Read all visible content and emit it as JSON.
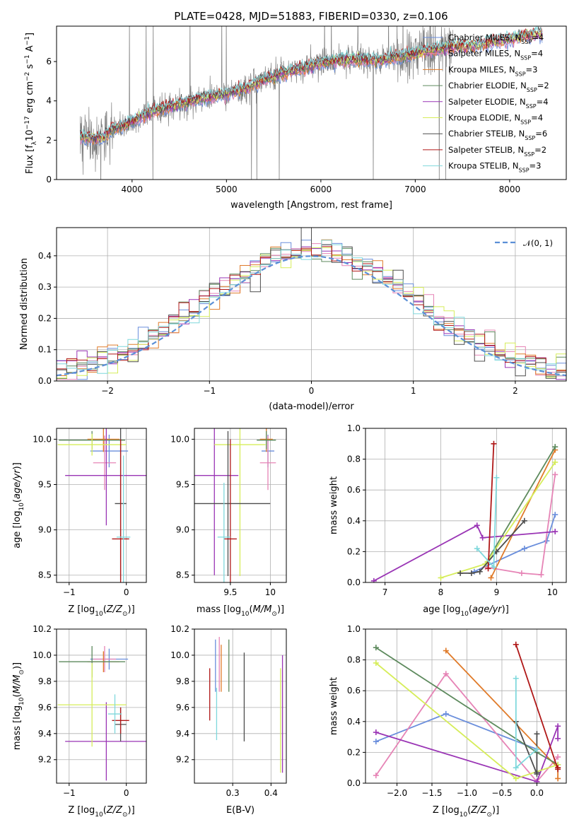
{
  "colors": {
    "Chabrier MILES": "#6a8edc",
    "Salpeter MILES": "#e684b6",
    "Kroupa MILES": "#e07b2a",
    "Chabrier ELODIE": "#5d8a5d",
    "Salpeter ELODIE": "#9a35b5",
    "Kroupa ELODIE": "#d6ed5a",
    "Chabrier STELIB": "#4d4d4d",
    "Salpeter STELIB": "#b01818",
    "Kroupa STELIB": "#7fd8dc",
    "data": "#808080",
    "gauss": "#5b8fd6"
  },
  "chart_data": [
    {
      "id": "spectrum",
      "type": "line",
      "title": "PLATE=0428, MJD=51883, FIBERID=0330, z=0.106",
      "xlabel": "wavelength [Angstrom, rest frame]",
      "ylabel": "Flux [f",
      "ylabel_parts": [
        "Flux [f",
        "λ",
        "10",
        "−17",
        " erg cm",
        "−2",
        " s",
        "−1",
        " A",
        "−1",
        "]"
      ],
      "xlim": [
        3200,
        8600
      ],
      "ylim": [
        0,
        7.8
      ],
      "xticks": [
        4000,
        5000,
        6000,
        7000,
        8000
      ],
      "yticks": [
        0,
        2,
        4,
        6
      ],
      "grid": false,
      "legend_position": "top-right",
      "legend": [
        {
          "name": "Chabrier MILES",
          "nssp": "4"
        },
        {
          "name": "Salpeter MILES",
          "nssp": "4"
        },
        {
          "name": "Kroupa MILES",
          "nssp": "3"
        },
        {
          "name": "Chabrier ELODIE",
          "nssp": "2"
        },
        {
          "name": "Salpeter ELODIE",
          "nssp": "4"
        },
        {
          "name": "Kroupa ELODIE",
          "nssp": "4"
        },
        {
          "name": "Chabrier STELIB",
          "nssp": "6"
        },
        {
          "name": "Salpeter STELIB",
          "nssp": "2"
        },
        {
          "name": "Kroupa STELIB",
          "nssp": "3"
        }
      ],
      "continuum": {
        "x": [
          3450,
          3600,
          3700,
          3800,
          3900,
          4000,
          4100,
          4200,
          4400,
          4600,
          4800,
          5000,
          5200,
          5400,
          5600,
          5800,
          6000,
          6200,
          6400,
          6600,
          6800,
          7000,
          7200,
          7400,
          7600,
          7800,
          8000,
          8200,
          8350
        ],
        "y": [
          2.2,
          2.05,
          2.15,
          2.6,
          2.7,
          2.95,
          3.2,
          3.45,
          3.7,
          3.95,
          4.2,
          4.35,
          4.65,
          5.05,
          5.4,
          5.65,
          5.95,
          6.05,
          6.1,
          6.05,
          6.2,
          6.4,
          6.6,
          6.75,
          6.8,
          6.95,
          7.15,
          7.35,
          7.4
        ]
      },
      "data_x_range": [
        3450,
        7400
      ],
      "data_noise": 0.45
    },
    {
      "id": "residuals",
      "type": "step",
      "xlabel": "(data-model)/error",
      "ylabel": "Normed distribution",
      "xlim": [
        -2.5,
        2.5
      ],
      "ylim": [
        0,
        0.49
      ],
      "xticks": [
        -2,
        -1,
        0,
        1,
        2
      ],
      "yticks": [
        0.0,
        0.1,
        0.2,
        0.3,
        0.4
      ],
      "grid": true,
      "legend_position": "top-right",
      "gauss_label": "𝒩(0, 1)",
      "bin_width": 0.1
    },
    {
      "id": "age-vs-Z",
      "type": "errorbar",
      "xlabel": "Z [log10(Z/Z⊙)]",
      "ylabel": "age  [log10(age/yr)]",
      "xlim": [
        -1.22,
        0.35
      ],
      "ylim": [
        8.42,
        10.12
      ],
      "xticks": [
        -1,
        0
      ],
      "yticks": [
        8.5,
        9.0,
        9.5,
        10.0
      ],
      "grid": true,
      "points": [
        {
          "model": "Chabrier MILES",
          "x": -0.3,
          "xerr": 0.33,
          "y": 9.87,
          "yerr": 0.18
        },
        {
          "model": "Salpeter MILES",
          "x": -0.38,
          "xerr": 0.2,
          "y": 9.74,
          "yerr": 0.3
        },
        {
          "model": "Kroupa MILES",
          "x": -0.4,
          "xerr": 0.28,
          "y": 10.0,
          "yerr": 0.14
        },
        {
          "model": "Chabrier ELODIE",
          "x": -0.6,
          "xerr": 0.58,
          "y": 9.99,
          "yerr": 0.1
        },
        {
          "model": "Salpeter ELODIE",
          "x": -0.35,
          "xerr": 0.72,
          "y": 9.6,
          "yerr": 0.55
        },
        {
          "model": "Kroupa ELODIE",
          "x": -0.6,
          "xerr": 0.6,
          "y": 9.94,
          "yerr": 0.12
        },
        {
          "model": "Chabrier STELIB",
          "x": -0.1,
          "xerr": 0.1,
          "y": 9.29,
          "yerr": 0.85
        },
        {
          "model": "Salpeter STELIB",
          "x": -0.1,
          "xerr": 0.15,
          "y": 8.9,
          "yerr": 1.1
        },
        {
          "model": "Kroupa STELIB",
          "x": -0.05,
          "xerr": 0.12,
          "y": 8.92,
          "yerr": 0.9
        }
      ]
    },
    {
      "id": "age-vs-mass",
      "type": "errorbar",
      "xlabel": "mass [log10(M/M⊙)]",
      "ylabel": "",
      "xlim": [
        9.05,
        10.2
      ],
      "ylim": [
        8.42,
        10.12
      ],
      "xticks": [
        9.5,
        10.0
      ],
      "yticks": [
        8.5,
        9.0,
        9.5,
        10.0
      ],
      "grid": true,
      "points": [
        {
          "model": "Chabrier MILES",
          "x": 9.97,
          "xerr": 0.08,
          "y": 9.87,
          "yerr": 0.18
        },
        {
          "model": "Salpeter MILES",
          "x": 9.97,
          "xerr": 0.1,
          "y": 9.74,
          "yerr": 0.3
        },
        {
          "model": "Kroupa MILES",
          "x": 9.95,
          "xerr": 0.08,
          "y": 10.0,
          "yerr": 0.14
        },
        {
          "model": "Chabrier ELODIE",
          "x": 9.95,
          "xerr": 0.12,
          "y": 9.99,
          "yerr": 0.1
        },
        {
          "model": "Salpeter ELODIE",
          "x": 9.3,
          "xerr": 0.3,
          "y": 9.6,
          "yerr": 1.1
        },
        {
          "model": "Kroupa ELODIE",
          "x": 9.62,
          "xerr": 0.32,
          "y": 9.94,
          "yerr": 1.45
        },
        {
          "model": "Chabrier STELIB",
          "x": 9.47,
          "xerr": 0.53,
          "y": 9.29,
          "yerr": 0.8
        },
        {
          "model": "Salpeter STELIB",
          "x": 9.5,
          "xerr": 0.08,
          "y": 8.9,
          "yerr": 1.1
        },
        {
          "model": "Kroupa STELIB",
          "x": 9.42,
          "xerr": 0.08,
          "y": 8.92,
          "yerr": 0.6
        }
      ]
    },
    {
      "id": "weight-vs-age",
      "type": "line",
      "xlabel": "age  [log10(age/yr)]",
      "ylabel": "mass weight",
      "xlim": [
        6.65,
        10.25
      ],
      "ylim": [
        0,
        1.0
      ],
      "xticks": [
        7,
        8,
        9,
        10
      ],
      "yticks": [
        0.0,
        0.2,
        0.4,
        0.6,
        0.8,
        1.0
      ],
      "grid": true,
      "series": [
        {
          "model": "Chabrier MILES",
          "x": [
            8.6,
            9.5,
            9.9,
            10.05
          ],
          "y": [
            0.07,
            0.22,
            0.27,
            0.44
          ]
        },
        {
          "model": "Salpeter MILES",
          "x": [
            8.8,
            9.45,
            9.8,
            10.05
          ],
          "y": [
            0.1,
            0.06,
            0.05,
            0.7
          ]
        },
        {
          "model": "Kroupa MILES",
          "x": [
            8.9,
            10.05
          ],
          "y": [
            0.03,
            0.86
          ]
        },
        {
          "model": "Chabrier ELODIE",
          "x": [
            8.8,
            10.05
          ],
          "y": [
            0.12,
            0.88
          ]
        },
        {
          "model": "Salpeter ELODIE",
          "x": [
            6.8,
            8.65,
            8.75,
            10.05
          ],
          "y": [
            0.01,
            0.37,
            0.29,
            0.33
          ]
        },
        {
          "model": "Kroupa ELODIE",
          "x": [
            8.0,
            8.8,
            10.05
          ],
          "y": [
            0.03,
            0.12,
            0.78
          ]
        },
        {
          "model": "Chabrier STELIB",
          "x": [
            8.35,
            8.55,
            8.7,
            9.0,
            9.5
          ],
          "y": [
            0.06,
            0.06,
            0.07,
            0.2,
            0.4
          ]
        },
        {
          "model": "Salpeter STELIB",
          "x": [
            8.85,
            8.95
          ],
          "y": [
            0.09,
            0.9
          ]
        },
        {
          "model": "Kroupa STELIB",
          "x": [
            8.65,
            8.95,
            9.0
          ],
          "y": [
            0.22,
            0.1,
            0.68
          ]
        }
      ]
    },
    {
      "id": "mass-vs-Z",
      "type": "errorbar",
      "xlabel": "Z [log10(Z/Z⊙)]",
      "ylabel": "mass [log10(M/M⊙)]",
      "xlim": [
        -1.22,
        0.35
      ],
      "ylim": [
        9.02,
        10.2
      ],
      "xticks": [
        -1,
        0
      ],
      "yticks": [
        9.2,
        9.4,
        9.6,
        9.8,
        10.0,
        10.2
      ],
      "grid": true,
      "points": [
        {
          "model": "Chabrier MILES",
          "x": -0.3,
          "xerr": 0.33,
          "y": 9.97,
          "yerr": 0.08
        },
        {
          "model": "Salpeter MILES",
          "x": -0.38,
          "xerr": 0.2,
          "y": 9.97,
          "yerr": 0.1
        },
        {
          "model": "Kroupa MILES",
          "x": -0.4,
          "xerr": 0.28,
          "y": 9.95,
          "yerr": 0.08
        },
        {
          "model": "Chabrier ELODIE",
          "x": -0.6,
          "xerr": 0.58,
          "y": 9.95,
          "yerr": 0.12
        },
        {
          "model": "Salpeter ELODIE",
          "x": -0.35,
          "xerr": 0.72,
          "y": 9.34,
          "yerr": 0.3
        },
        {
          "model": "Kroupa ELODIE",
          "x": -0.6,
          "xerr": 0.6,
          "y": 9.62,
          "yerr": 0.32
        },
        {
          "model": "Chabrier STELIB",
          "x": -0.1,
          "xerr": 0.1,
          "y": 9.47,
          "yerr": 0.13
        },
        {
          "model": "Salpeter STELIB",
          "x": -0.1,
          "xerr": 0.15,
          "y": 9.5,
          "yerr": 0.1
        },
        {
          "model": "Kroupa STELIB",
          "x": -0.2,
          "xerr": 0.12,
          "y": 9.55,
          "yerr": 0.15
        }
      ]
    },
    {
      "id": "mass-vs-ebv",
      "type": "errorbar",
      "xlabel": "E(B-V)",
      "ylabel": "",
      "xlim": [
        0.2,
        0.44
      ],
      "ylim": [
        9.02,
        10.2
      ],
      "xticks": [
        0.3,
        0.4
      ],
      "yticks": [
        9.2,
        9.4,
        9.6,
        9.8,
        10.0,
        10.2
      ],
      "grid": true,
      "points": [
        {
          "model": "Chabrier MILES",
          "x": 0.255,
          "y": 9.92,
          "yerr": 0.2
        },
        {
          "model": "Salpeter MILES",
          "x": 0.265,
          "y": 9.93,
          "yerr": 0.21
        },
        {
          "model": "Kroupa MILES",
          "x": 0.27,
          "y": 9.9,
          "yerr": 0.18
        },
        {
          "model": "Chabrier ELODIE",
          "x": 0.29,
          "y": 9.92,
          "yerr": 0.2
        },
        {
          "model": "Salpeter ELODIE",
          "x": 0.43,
          "y": 9.55,
          "yerr": 0.45
        },
        {
          "model": "Kroupa ELODIE",
          "x": 0.425,
          "y": 9.5,
          "yerr": 0.4
        },
        {
          "model": "Chabrier STELIB",
          "x": 0.33,
          "y": 9.68,
          "yerr": 0.34
        },
        {
          "model": "Salpeter STELIB",
          "x": 0.24,
          "y": 9.7,
          "yerr": 0.2
        },
        {
          "model": "Kroupa STELIB",
          "x": 0.258,
          "y": 9.55,
          "yerr": 0.2
        }
      ]
    },
    {
      "id": "weight-vs-Z",
      "type": "line",
      "xlabel": "Z [log10(Z/Z⊙)]",
      "ylabel": "mass weight",
      "xlim": [
        -2.45,
        0.42
      ],
      "ylim": [
        0,
        1.0
      ],
      "xticks": [
        -2.0,
        -1.5,
        -1.0,
        -0.5,
        0.0
      ],
      "yticks": [
        0.0,
        0.2,
        0.4,
        0.6,
        0.8,
        1.0
      ],
      "grid": true,
      "series": [
        {
          "model": "Chabrier MILES",
          "x": [
            -2.3,
            -1.3,
            0.0
          ],
          "y": [
            0.27,
            0.45,
            0.22
          ]
        },
        {
          "model": "Salpeter MILES",
          "x": [
            -2.3,
            -1.3,
            0.0,
            0.3
          ],
          "y": [
            0.05,
            0.71,
            0.01,
            0.17
          ]
        },
        {
          "model": "Kroupa MILES",
          "x": [
            -1.3,
            0.3,
            0.3
          ],
          "y": [
            0.86,
            0.1,
            0.03
          ]
        },
        {
          "model": "Chabrier ELODIE",
          "x": [
            -2.3,
            0.0,
            0.3
          ],
          "y": [
            0.88,
            0.2,
            0.12
          ]
        },
        {
          "model": "Salpeter ELODIE",
          "x": [
            -2.3,
            0.0,
            0.3,
            0.3
          ],
          "y": [
            0.33,
            0.01,
            0.37,
            0.29
          ]
        },
        {
          "model": "Kroupa ELODIE",
          "x": [
            -2.3,
            -0.3,
            0.3
          ],
          "y": [
            0.78,
            0.03,
            0.12
          ]
        },
        {
          "model": "Chabrier STELIB",
          "x": [
            -0.3,
            0.0,
            0.0,
            0.0
          ],
          "y": [
            0.4,
            0.06,
            0.32,
            0.07
          ]
        },
        {
          "model": "Salpeter STELIB",
          "x": [
            -0.3,
            0.3,
            0.3
          ],
          "y": [
            0.9,
            0.09,
            0.1
          ]
        },
        {
          "model": "Kroupa STELIB",
          "x": [
            -0.3,
            -0.3,
            0.0
          ],
          "y": [
            0.68,
            0.1,
            0.22
          ]
        }
      ]
    }
  ]
}
